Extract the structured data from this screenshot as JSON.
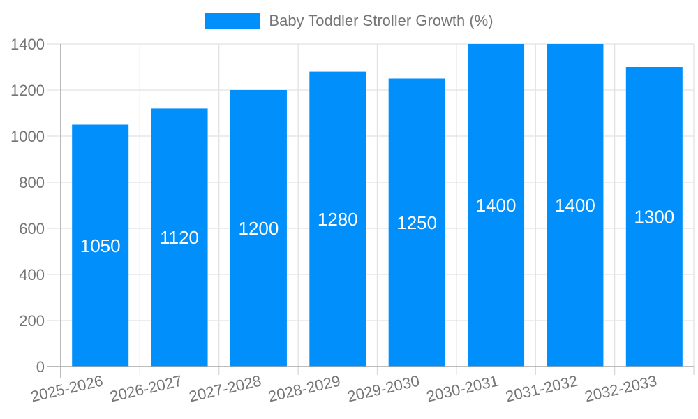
{
  "chart_data": {
    "type": "bar",
    "title": "Baby Toddler Stroller Growth (%)",
    "series": [
      {
        "name": "Baby Toddler Stroller Growth (%)",
        "values": [
          1050,
          1120,
          1200,
          1280,
          1250,
          1400,
          1400,
          1300
        ]
      }
    ],
    "categories": [
      "2025-2026",
      "2026-2027",
      "2027-2028",
      "2028-2029",
      "2029-2030",
      "2030-2031",
      "2031-2032",
      "2032-2033"
    ],
    "value_labels": [
      "1050",
      "1120",
      "1200",
      "1280",
      "1250",
      "1400",
      "1400",
      "1300"
    ],
    "xlabel": "",
    "ylabel": "",
    "ylim": [
      0,
      1400
    ],
    "ytick_step": 200,
    "yticks": [
      0,
      200,
      400,
      600,
      800,
      1000,
      1200,
      1400
    ],
    "grid": true,
    "legend_position": "top",
    "colors": {
      "bar": "#008FFB",
      "axis_label": "#757575",
      "gridline": "#e2e2e2",
      "axis_line": "#a6a6a6",
      "tick": "#d9d9d9",
      "value_label": "#ffffff",
      "legend_text": "#757575"
    }
  }
}
